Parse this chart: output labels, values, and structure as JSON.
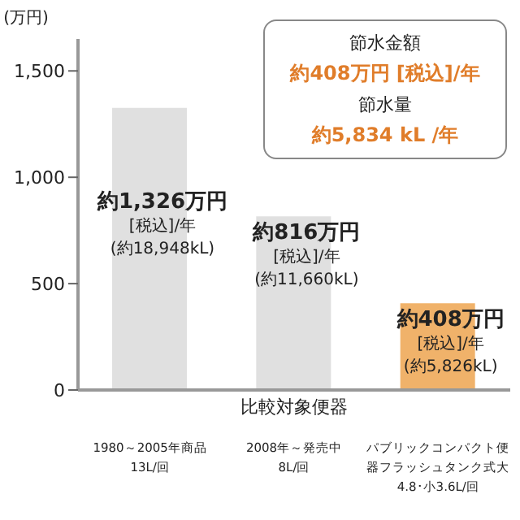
{
  "chart_data": {
    "type": "bar",
    "ylabel": "(万円)",
    "xlabel": "比較対象便器",
    "categories": [
      "1980～2005年商品\n13L/回",
      "2008年～発売中\n8L/回",
      "パブリックコンパクト便器フラッシュタンク式大4.8･小3.6L/回"
    ],
    "values": [
      1326,
      816,
      408
    ],
    "colors": [
      "#e0e0e0",
      "#e0e0e0",
      "#f0b26a"
    ],
    "value_labels": [
      "約1,326万円\n[税込]/年\n(約18,948kL)",
      "約816万円\n[税込]/年\n(約11,660kL)",
      "約408万円\n[税込]/年\n(約5,826kL)"
    ],
    "ylim": [
      0,
      1650
    ],
    "yticks": [
      0,
      500,
      {
        "value": 1000,
        "label": "1,000"
      },
      {
        "value": 1500,
        "label": "1,500"
      }
    ],
    "grid": false,
    "legend": false,
    "annotations": [
      "節水金額",
      "約408万円 [税込]/年",
      "節水量",
      "約5,834 kL /年"
    ]
  }
}
